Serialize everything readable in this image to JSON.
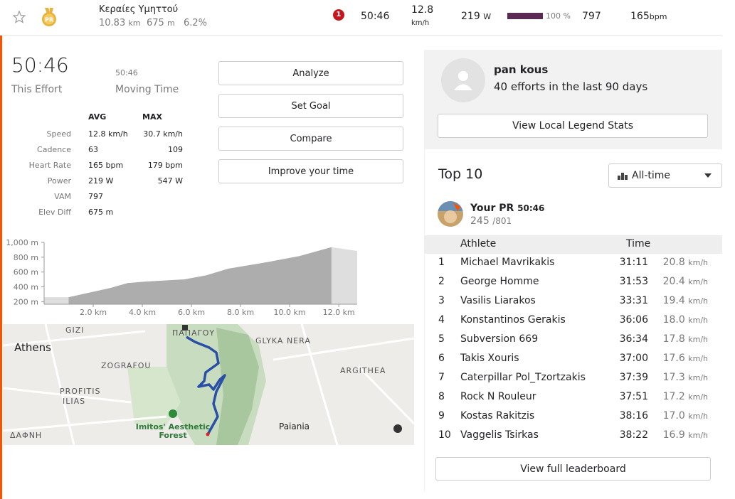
{
  "top_bar": {
    "segment_name": "Κεραίες Υμηττού",
    "distance": "10.83",
    "distance_unit": "km",
    "elevation": "675",
    "elevation_unit": "m",
    "grade": "6.2%",
    "rank_badge": "1",
    "time": "50:46",
    "speed": "12.8",
    "speed_unit": "km/h",
    "power": "219",
    "power_unit": "W",
    "percent": "100 %",
    "vam": "797",
    "heart_rate": "165",
    "heart_rate_unit": "bpm",
    "medal": "PR"
  },
  "effort": {
    "time": "50:46",
    "time_label": "This Effort",
    "moving_time": "50:46",
    "moving_time_label": "Moving Time"
  },
  "stats": {
    "header": {
      "avg": "AVG",
      "max": "MAX"
    },
    "rows": [
      {
        "label": "Speed",
        "avg": "12.8 km/h",
        "max": "30.7 km/h"
      },
      {
        "label": "Cadence",
        "avg": "63",
        "max": "109"
      },
      {
        "label": "Heart Rate",
        "avg": "165 bpm",
        "max": "179 bpm"
      },
      {
        "label": "Power",
        "avg": "219 W",
        "max": "547 W"
      },
      {
        "label": "VAM",
        "avg": "797"
      },
      {
        "label": "Elev Diff",
        "avg": "675 m"
      }
    ]
  },
  "buttons": [
    "Analyze",
    "Set Goal",
    "Compare",
    "Improve your time"
  ],
  "chart_data": {
    "type": "area",
    "x": [
      0,
      1.0,
      2.7,
      3.4,
      4.1,
      5.7,
      6.6,
      7.5,
      9.2,
      10.4,
      11.7,
      12.75
    ],
    "values": [
      260,
      260,
      385,
      450,
      470,
      500,
      555,
      645,
      740,
      815,
      935,
      885
    ],
    "xlim": [
      0,
      12.75
    ],
    "ylim": [
      165,
      1000
    ],
    "xticks": [
      {
        "value": 2,
        "label": "2.0 km"
      },
      {
        "value": 4,
        "label": "4.0 km"
      },
      {
        "value": 6,
        "label": "6.0 km"
      },
      {
        "value": 8,
        "label": "8.0 km"
      },
      {
        "value": 10,
        "label": "10.0 km"
      },
      {
        "value": 12,
        "label": "12.0 km"
      }
    ],
    "yticks": [
      {
        "value": 200,
        "label": "200 m"
      },
      {
        "value": 400,
        "label": "400 m"
      },
      {
        "value": 600,
        "label": "600 m"
      },
      {
        "value": 800,
        "label": "800 m"
      },
      {
        "value": 1000,
        "label": "1,000 m"
      }
    ],
    "segment_range": [
      1.0,
      11.7
    ],
    "color": "#adadad",
    "context_color": "#dedede"
  },
  "map": {
    "labels": [
      "GIZI",
      "Athens",
      "ZOGRAFOU",
      "PROFITIS ILIAS",
      "ΔΑΦΝΗ",
      "ΠΑΠΑΓΟΥ",
      "GLYKA NERA",
      "ARGITHEA",
      "Paiania",
      "Imitos' Aesthetic Forest"
    ]
  },
  "legend_card": {
    "name": "pan kous",
    "efforts": "40 efforts in the last 90 days",
    "button": "View Local Legend Stats"
  },
  "leaderboard": {
    "title": "Top 10",
    "filter": "All-time",
    "pr_label": "Your PR",
    "pr_time": "50:46",
    "pr_rank": "245",
    "pr_total": "/801",
    "header": {
      "athlete": "Athlete",
      "time": "Time"
    },
    "speed_unit": "km/h",
    "rows": [
      {
        "rank": "1",
        "name": "Michael Mavrikakis",
        "time": "31:11",
        "speed": "20.8"
      },
      {
        "rank": "2",
        "name": "George Homme",
        "time": "31:53",
        "speed": "20.4"
      },
      {
        "rank": "3",
        "name": "Vasilis Liarakos",
        "time": "33:31",
        "speed": "19.4"
      },
      {
        "rank": "4",
        "name": "Konstantinos Gerakis",
        "time": "36:06",
        "speed": "18.0"
      },
      {
        "rank": "5",
        "name": "Subversion 669",
        "time": "36:34",
        "speed": "17.8"
      },
      {
        "rank": "6",
        "name": "Takis Xouris",
        "time": "37:00",
        "speed": "17.6"
      },
      {
        "rank": "7",
        "name": "Caterpillar Pol_Tzortzakis",
        "time": "37:39",
        "speed": "17.3"
      },
      {
        "rank": "8",
        "name": "Rock N Rouleur",
        "time": "37:51",
        "speed": "17.2"
      },
      {
        "rank": "9",
        "name": "Kostas Rakitzis",
        "time": "38:16",
        "speed": "17.0"
      },
      {
        "rank": "10",
        "name": "Vaggelis Tsirkas",
        "time": "38:22",
        "speed": "16.9"
      }
    ],
    "button": "View full leaderboard"
  }
}
